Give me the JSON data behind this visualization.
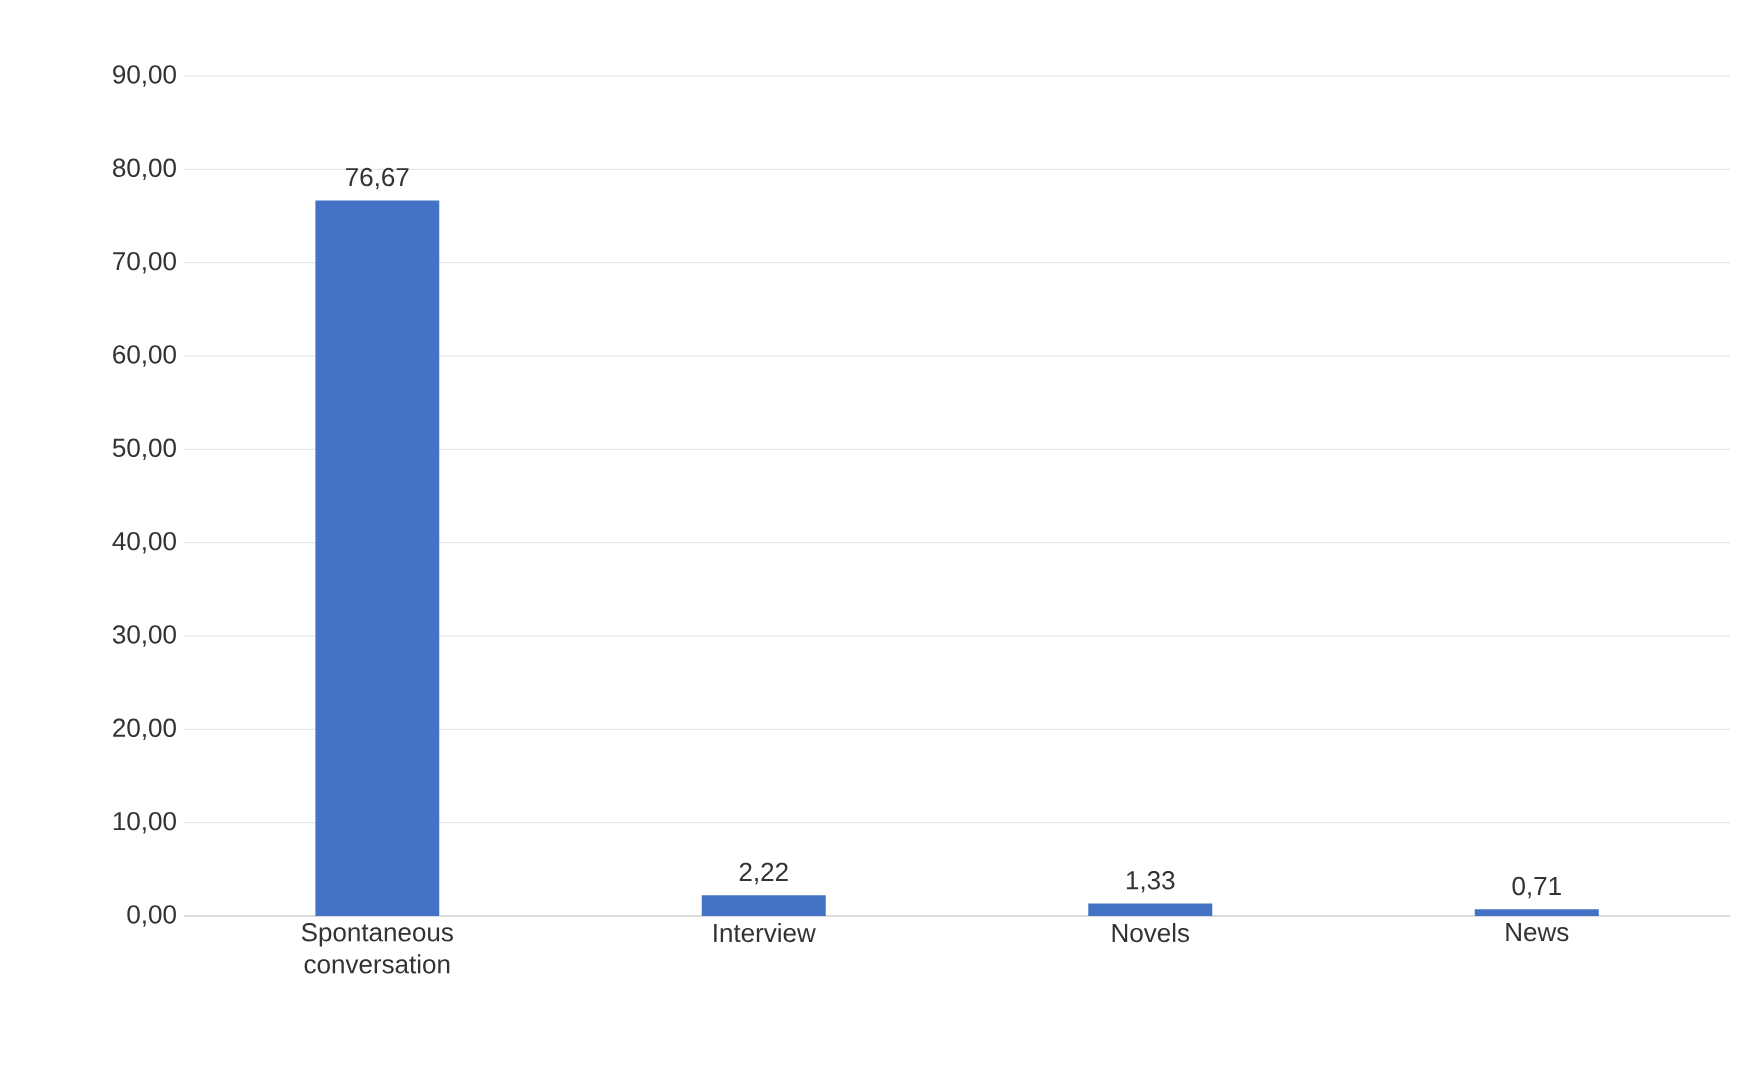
{
  "chart_data": {
    "type": "bar",
    "categories": [
      "Spontaneous conversation",
      "Interview",
      "Novels",
      "News"
    ],
    "values": [
      76.67,
      2.22,
      1.33,
      0.71
    ],
    "value_labels": [
      "76,67",
      "2,22",
      "1,33",
      "0,71"
    ],
    "color": "#4472c4",
    "ylim": [
      0,
      90
    ],
    "yticks": [
      {
        "value": 0,
        "label": "0,00"
      },
      {
        "value": 10,
        "label": "10,00"
      },
      {
        "value": 20,
        "label": "20,00"
      },
      {
        "value": 30,
        "label": "30,00"
      },
      {
        "value": 40,
        "label": "40,00"
      },
      {
        "value": 50,
        "label": "50,00"
      },
      {
        "value": 60,
        "label": "60,00"
      },
      {
        "value": 70,
        "label": "70,00"
      },
      {
        "value": 80,
        "label": "80,00"
      },
      {
        "value": 90,
        "label": "90,00"
      }
    ],
    "grid": "y"
  }
}
